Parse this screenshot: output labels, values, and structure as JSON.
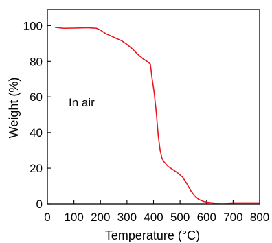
{
  "chart_data": {
    "type": "line",
    "title": "",
    "xlabel": "Temperature (°C)",
    "ylabel": "Weight (%)",
    "xlim": [
      0,
      800
    ],
    "ylim": [
      0,
      109
    ],
    "x_ticks": [
      0,
      100,
      200,
      300,
      400,
      500,
      600,
      700,
      800
    ],
    "x_tick_labels": [
      "0",
      "100",
      "200",
      "300",
      "400",
      "500",
      "600",
      "700",
      "800"
    ],
    "y_ticks": [
      0,
      20,
      40,
      60,
      80,
      100
    ],
    "y_tick_labels": [
      "0",
      "20",
      "40",
      "60",
      "80",
      "100"
    ],
    "grid": false,
    "legend": "none",
    "annotation": "In air",
    "series": [
      {
        "color": "#e8141b",
        "points": [
          [
            30,
            99.0
          ],
          [
            60,
            98.5
          ],
          [
            100,
            98.6
          ],
          [
            150,
            98.8
          ],
          [
            185,
            98.5
          ],
          [
            200,
            97.5
          ],
          [
            220,
            95.5
          ],
          [
            250,
            93.5
          ],
          [
            280,
            91.5
          ],
          [
            300,
            89.5
          ],
          [
            320,
            87.0
          ],
          [
            340,
            84.0
          ],
          [
            360,
            81.5
          ],
          [
            380,
            79.5
          ],
          [
            388,
            78.5
          ],
          [
            395,
            70.0
          ],
          [
            402,
            63.0
          ],
          [
            410,
            52.0
          ],
          [
            418,
            38.0
          ],
          [
            425,
            30.0
          ],
          [
            432,
            25.5
          ],
          [
            440,
            23.5
          ],
          [
            455,
            21.0
          ],
          [
            470,
            19.5
          ],
          [
            490,
            17.5
          ],
          [
            510,
            15.0
          ],
          [
            525,
            11.5
          ],
          [
            540,
            7.5
          ],
          [
            555,
            4.5
          ],
          [
            570,
            2.5
          ],
          [
            590,
            1.3
          ],
          [
            610,
            0.8
          ],
          [
            630,
            0.5
          ],
          [
            660,
            0.3
          ],
          [
            700,
            0.6
          ],
          [
            750,
            0.6
          ],
          [
            800,
            0.6
          ]
        ]
      }
    ]
  }
}
